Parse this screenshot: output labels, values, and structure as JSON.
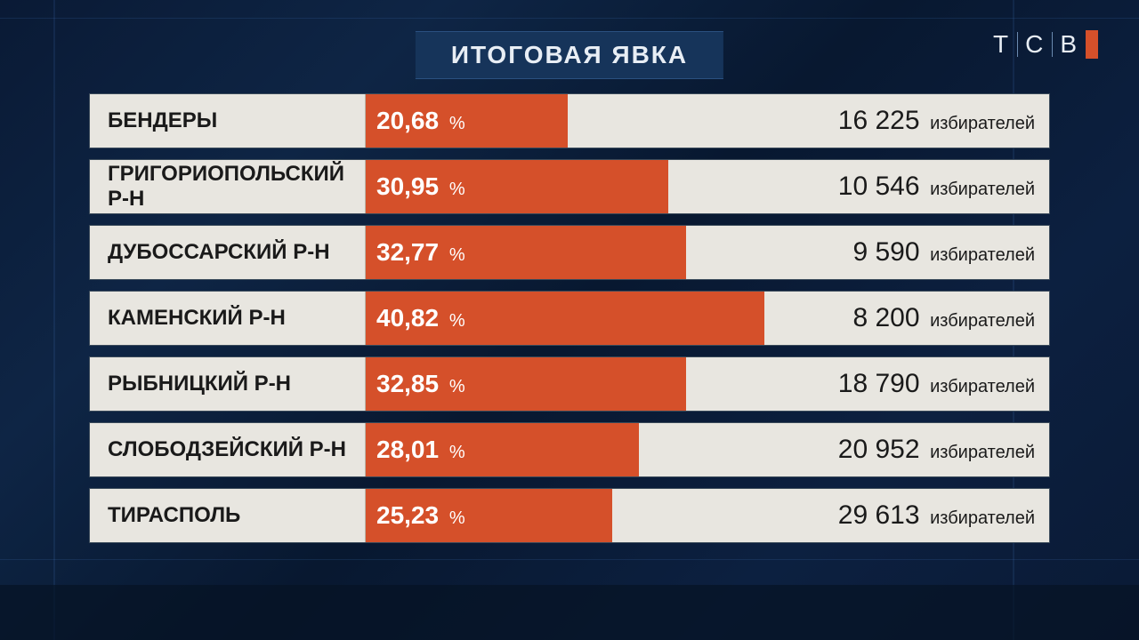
{
  "title": "ИТОГОВАЯ ЯВКА",
  "logo": {
    "letters": [
      "Т",
      "С",
      "В"
    ]
  },
  "colors": {
    "bar_fill": "#d5502a",
    "row_bg": "#e8e6e0",
    "title_bg": "#16345a",
    "page_bg_from": "#0a1a35",
    "page_bg_to": "#0c2040",
    "text_dark": "#1a1a1a",
    "text_light": "#e8eef5"
  },
  "bar_scale_pct": 70,
  "percent_sign": "%",
  "voters_unit": "избирателей",
  "rows": [
    {
      "region": "БЕНДЕРЫ",
      "pct": "20,68",
      "pct_num": 20.68,
      "voters": "16 225"
    },
    {
      "region": "ГРИГОРИОПОЛЬСКИЙ Р-Н",
      "pct": "30,95",
      "pct_num": 30.95,
      "voters": "10 546"
    },
    {
      "region": "ДУБОССАРСКИЙ Р-Н",
      "pct": "32,77",
      "pct_num": 32.77,
      "voters": "9 590"
    },
    {
      "region": "КАМЕНСКИЙ Р-Н",
      "pct": "40,82",
      "pct_num": 40.82,
      "voters": "8 200"
    },
    {
      "region": "РЫБНИЦКИЙ Р-Н",
      "pct": "32,85",
      "pct_num": 32.85,
      "voters": "18 790"
    },
    {
      "region": "СЛОБОДЗЕЙСКИЙ Р-Н",
      "pct": "28,01",
      "pct_num": 28.01,
      "voters": "20 952"
    },
    {
      "region": "ТИРАСПОЛЬ",
      "pct": "25,23",
      "pct_num": 25.23,
      "voters": "29 613"
    }
  ]
}
